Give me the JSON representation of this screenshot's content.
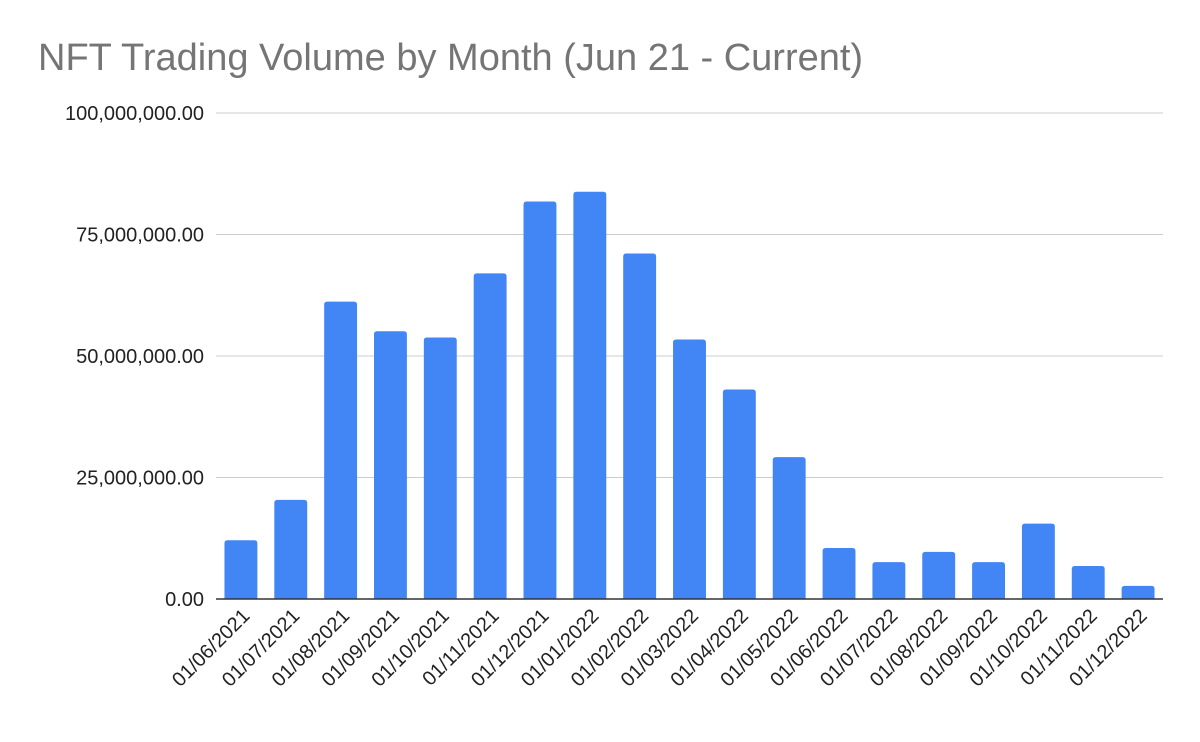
{
  "chart_data": {
    "type": "bar",
    "title": "NFT Trading Volume by Month (Jun 21 - Current)",
    "xlabel": "",
    "ylabel": "",
    "ylim": [
      0,
      100000000
    ],
    "yticks": [
      0,
      25000000,
      50000000,
      75000000,
      100000000
    ],
    "ytick_labels": [
      "0.00",
      "25,000,000.00",
      "50,000,000.00",
      "75,000,000.00",
      "100,000,000.00"
    ],
    "grid": true,
    "legend": "none",
    "categories": [
      "01/06/2021",
      "01/07/2021",
      "01/08/2021",
      "01/09/2021",
      "01/10/2021",
      "01/11/2021",
      "01/12/2021",
      "01/01/2022",
      "01/02/2022",
      "01/03/2022",
      "01/04/2022",
      "01/05/2022",
      "01/06/2022",
      "01/07/2022",
      "01/08/2022",
      "01/09/2022",
      "01/10/2022",
      "01/11/2022",
      "01/12/2022"
    ],
    "values": [
      12100000,
      20400000,
      61200000,
      55100000,
      53800000,
      67000000,
      81800000,
      83800000,
      71100000,
      53400000,
      43100000,
      29200000,
      10500000,
      7600000,
      9700000,
      7600000,
      15500000,
      6800000,
      2700000
    ],
    "bar_color": "#4285f4"
  }
}
